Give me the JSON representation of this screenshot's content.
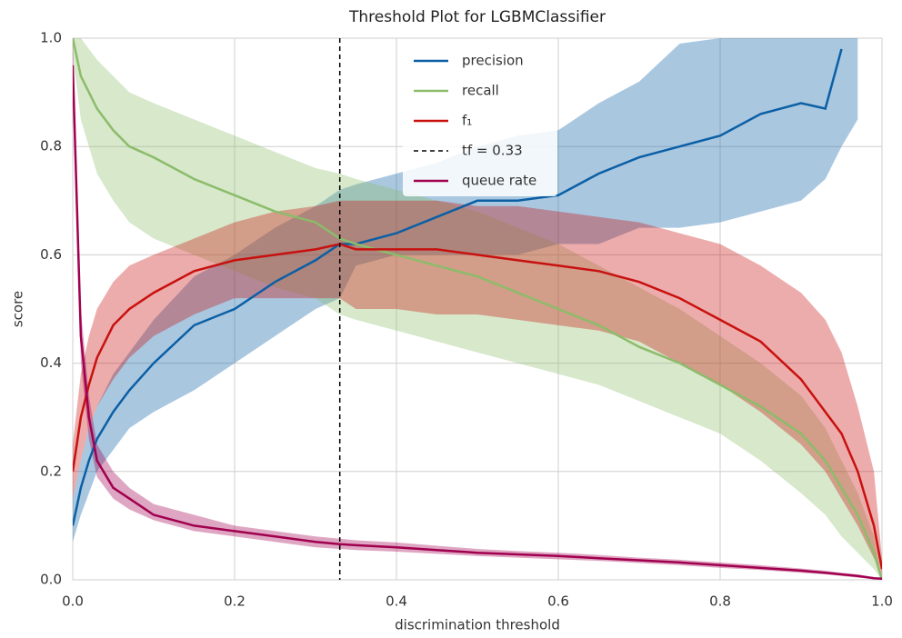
{
  "chart_data": {
    "type": "threshold",
    "title": "Threshold Plot for LGBMClassifier",
    "xlabel": "discrimination threshold",
    "ylabel": "score",
    "x": [
      0,
      0.01,
      0.02,
      0.03,
      0.05,
      0.07,
      0.1,
      0.15,
      0.2,
      0.25,
      0.3,
      0.33,
      0.35,
      0.4,
      0.45,
      0.5,
      0.55,
      0.6,
      0.65,
      0.7,
      0.75,
      0.8,
      0.85,
      0.9,
      0.93,
      0.95,
      0.97,
      0.99,
      1.0
    ],
    "series": [
      {
        "name": "precision",
        "color": "#0b5fa5",
        "values": [
          0.1,
          0.17,
          0.22,
          0.26,
          0.31,
          0.35,
          0.4,
          0.47,
          0.5,
          0.55,
          0.59,
          0.62,
          0.62,
          0.64,
          0.67,
          0.7,
          0.7,
          0.71,
          0.75,
          0.78,
          0.8,
          0.82,
          0.86,
          0.88,
          0.87,
          0.98,
          null,
          null,
          null
        ],
        "lower": [
          0.07,
          0.12,
          0.16,
          0.2,
          0.24,
          0.28,
          0.31,
          0.35,
          0.4,
          0.45,
          0.5,
          0.52,
          0.58,
          0.6,
          0.6,
          0.6,
          0.6,
          0.62,
          0.62,
          0.65,
          0.65,
          0.66,
          0.68,
          0.7,
          0.74,
          0.8,
          0.85,
          null,
          null
        ],
        "upper": [
          0.15,
          0.22,
          0.28,
          0.32,
          0.38,
          0.42,
          0.48,
          0.56,
          0.6,
          0.65,
          0.69,
          0.72,
          0.73,
          0.75,
          0.77,
          0.8,
          0.82,
          0.83,
          0.88,
          0.92,
          0.99,
          1.0,
          1.0,
          1.0,
          1.0,
          1.0,
          1.0,
          null,
          null
        ]
      },
      {
        "name": "recall",
        "color": "#8cbc6a",
        "values": [
          1.0,
          0.93,
          0.9,
          0.87,
          0.83,
          0.8,
          0.78,
          0.74,
          0.71,
          0.68,
          0.66,
          0.63,
          0.62,
          0.6,
          0.58,
          0.56,
          0.53,
          0.5,
          0.47,
          0.43,
          0.4,
          0.36,
          0.32,
          0.27,
          0.22,
          0.17,
          0.12,
          0.05,
          0
        ],
        "lower": [
          0.97,
          0.85,
          0.8,
          0.75,
          0.7,
          0.66,
          0.63,
          0.6,
          0.57,
          0.54,
          0.52,
          0.49,
          0.48,
          0.46,
          0.44,
          0.42,
          0.4,
          0.38,
          0.36,
          0.33,
          0.3,
          0.27,
          0.22,
          0.16,
          0.12,
          0.08,
          0.05,
          0.02,
          0
        ],
        "upper": [
          1,
          1,
          0.98,
          0.96,
          0.93,
          0.9,
          0.88,
          0.85,
          0.82,
          0.79,
          0.76,
          0.75,
          0.74,
          0.72,
          0.7,
          0.68,
          0.65,
          0.62,
          0.58,
          0.54,
          0.5,
          0.45,
          0.4,
          0.34,
          0.28,
          0.22,
          0.16,
          0.08,
          0
        ]
      },
      {
        "name": "f₁",
        "color": "#c8110f",
        "values": [
          0.2,
          0.3,
          0.36,
          0.41,
          0.47,
          0.5,
          0.53,
          0.57,
          0.59,
          0.6,
          0.61,
          0.62,
          0.61,
          0.61,
          0.61,
          0.6,
          0.59,
          0.58,
          0.57,
          0.55,
          0.52,
          0.48,
          0.44,
          0.37,
          0.31,
          0.27,
          0.2,
          0.1,
          0.02
        ],
        "lower": [
          0.15,
          0.22,
          0.28,
          0.32,
          0.37,
          0.41,
          0.45,
          0.49,
          0.52,
          0.52,
          0.52,
          0.52,
          0.5,
          0.5,
          0.49,
          0.49,
          0.48,
          0.47,
          0.46,
          0.44,
          0.4,
          0.36,
          0.31,
          0.25,
          0.2,
          0.15,
          0.1,
          0.04,
          0.01
        ],
        "upper": [
          0.25,
          0.38,
          0.45,
          0.5,
          0.55,
          0.58,
          0.6,
          0.63,
          0.66,
          0.68,
          0.69,
          0.7,
          0.7,
          0.7,
          0.7,
          0.69,
          0.69,
          0.68,
          0.67,
          0.66,
          0.64,
          0.62,
          0.58,
          0.53,
          0.48,
          0.42,
          0.32,
          0.2,
          0.04
        ]
      },
      {
        "name": "queue rate",
        "color": "#a1004f",
        "values": [
          0.95,
          0.45,
          0.3,
          0.22,
          0.17,
          0.15,
          0.12,
          0.1,
          0.09,
          0.08,
          0.07,
          0.066,
          0.064,
          0.06,
          0.055,
          0.05,
          0.047,
          0.044,
          0.04,
          0.036,
          0.032,
          0.027,
          0.022,
          0.017,
          0.013,
          0.01,
          0.007,
          0.003,
          0.002
        ],
        "lower": [
          0.9,
          0.4,
          0.26,
          0.19,
          0.15,
          0.13,
          0.11,
          0.09,
          0.08,
          0.07,
          0.06,
          0.057,
          0.055,
          0.052,
          0.048,
          0.044,
          0.041,
          0.038,
          0.035,
          0.031,
          0.027,
          0.022,
          0.018,
          0.013,
          0.01,
          0.007,
          0.004,
          0.002,
          0
        ],
        "upper": [
          1,
          0.5,
          0.34,
          0.25,
          0.2,
          0.17,
          0.14,
          0.12,
          0.1,
          0.09,
          0.08,
          0.076,
          0.073,
          0.069,
          0.063,
          0.057,
          0.053,
          0.05,
          0.046,
          0.041,
          0.037,
          0.032,
          0.027,
          0.021,
          0.017,
          0.013,
          0.01,
          0.005,
          0.003
        ]
      }
    ],
    "threshold": {
      "value": 0.33,
      "label": "tf = 0.33"
    },
    "xlim": [
      0,
      1
    ],
    "ylim": [
      0,
      1
    ],
    "xticks": [
      {
        "value": 0,
        "label": "0.0"
      },
      0.2,
      0.4,
      0.6,
      0.8,
      {
        "value": 1,
        "label": "1.0"
      }
    ],
    "yticks": [
      {
        "value": 0,
        "label": "0.0"
      },
      0.2,
      0.4,
      0.6,
      0.8,
      {
        "value": 1,
        "label": "1.0"
      }
    ],
    "grid": true,
    "legend": "upper center"
  }
}
